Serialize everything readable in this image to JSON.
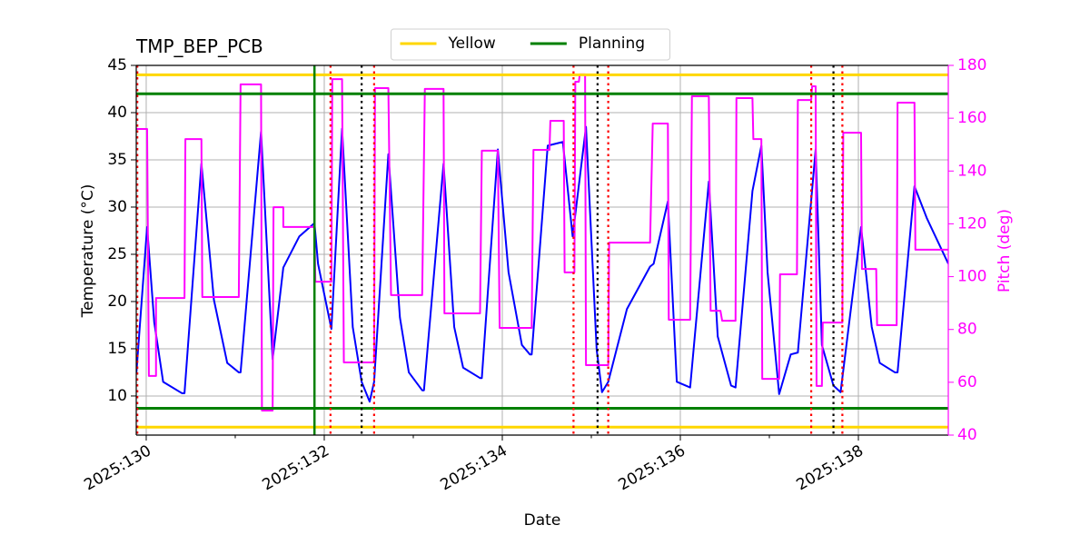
{
  "chart_data": {
    "type": "line",
    "title": "TMP_BEP_PCB",
    "xlabel": "Date",
    "ylabel": "Temperature (°C)",
    "y2label": "Pitch (deg)",
    "xlim": [
      129.888,
      139.01
    ],
    "ylim": [
      5.86,
      45
    ],
    "y2lim": [
      40,
      180
    ],
    "xticks": [
      {
        "value": 130,
        "label": "2025:130"
      },
      {
        "value": 132,
        "label": "2025:132"
      },
      {
        "value": 134,
        "label": "2025:134"
      },
      {
        "value": 136,
        "label": "2025:136"
      },
      {
        "value": 138,
        "label": "2025:138"
      }
    ],
    "xminorticks": [
      131,
      133,
      135,
      137
    ],
    "yticks": [
      10,
      15,
      20,
      25,
      30,
      35,
      40,
      45
    ],
    "y2ticks": [
      40,
      60,
      80,
      100,
      120,
      140,
      160,
      180
    ],
    "grid": true,
    "legend": "upper center",
    "y2color": "#ff00ff",
    "series": [
      {
        "color": "#0000ff",
        "x": [
          129.89,
          130.01,
          130.09,
          130.19,
          130.4,
          130.43,
          130.62,
          130.76,
          130.91,
          131.04,
          131.06,
          131.29,
          131.42,
          131.54,
          131.72,
          131.89,
          131.93,
          132.08,
          132.2,
          132.32,
          132.42,
          132.51,
          132.56,
          132.72,
          132.85,
          132.95,
          133.1,
          133.12,
          133.34,
          133.46,
          133.56,
          133.75,
          133.77,
          133.95,
          134.07,
          134.22,
          134.31,
          134.33,
          134.51,
          134.68,
          134.79,
          134.94,
          135.06,
          135.12,
          135.19,
          135.4,
          135.66,
          135.7,
          135.86,
          135.96,
          136.11,
          136.32,
          136.42,
          136.57,
          136.62,
          136.81,
          136.91,
          136.98,
          137.11,
          137.24,
          137.32,
          137.52,
          137.59,
          137.72,
          137.8,
          138.03,
          138.15,
          138.24,
          138.41,
          138.44,
          138.63,
          138.77,
          139.01
        ],
        "values": [
          12.5,
          27.9,
          17.8,
          11.5,
          10.3,
          10.3,
          34.6,
          20.2,
          13.5,
          12.5,
          12.5,
          38.0,
          13.9,
          23.6,
          26.9,
          28.3,
          24.0,
          17.1,
          38.3,
          17.3,
          11.5,
          9.4,
          11.5,
          35.6,
          18.3,
          12.5,
          10.6,
          10.6,
          34.6,
          17.3,
          13.0,
          11.9,
          11.9,
          36.1,
          23.1,
          15.4,
          14.4,
          14.4,
          36.5,
          36.9,
          26.9,
          38.5,
          14.9,
          10.4,
          11.5,
          19.2,
          23.7,
          24.0,
          30.6,
          11.5,
          10.9,
          32.7,
          16.3,
          11.1,
          10.9,
          31.7,
          36.5,
          23.1,
          10.2,
          14.4,
          14.6,
          36.1,
          15.4,
          11.1,
          10.4,
          27.9,
          17.3,
          13.5,
          12.5,
          12.5,
          32.2,
          28.8,
          24.0
        ]
      },
      {
        "color": "#ff00ff",
        "axis": "y2",
        "x": [
          129.89,
          130.01,
          130.03,
          130.11,
          130.11,
          130.43,
          130.44,
          130.62,
          130.63,
          131.04,
          131.06,
          131.29,
          131.3,
          131.42,
          131.43,
          131.54,
          131.54,
          131.89,
          131.9,
          132.08,
          132.09,
          132.2,
          132.22,
          132.56,
          132.57,
          132.72,
          132.75,
          133.1,
          133.13,
          133.34,
          133.35,
          133.75,
          133.77,
          133.95,
          133.97,
          134.33,
          134.35,
          134.53,
          134.54,
          134.69,
          134.7,
          134.81,
          134.82,
          134.86,
          134.87,
          134.93,
          134.94,
          135.19,
          135.2,
          135.66,
          135.69,
          135.86,
          135.87,
          136.11,
          136.13,
          136.32,
          136.34,
          136.45,
          136.47,
          136.62,
          136.63,
          136.81,
          136.82,
          136.91,
          136.92,
          137.11,
          137.12,
          137.31,
          137.32,
          137.47,
          137.48,
          137.52,
          137.53,
          137.59,
          137.6,
          137.82,
          137.83,
          138.03,
          138.04,
          138.2,
          138.21,
          138.43,
          138.44,
          138.63,
          138.64,
          139.01
        ],
        "values": [
          155.9,
          155.9,
          62.4,
          62.4,
          91.9,
          91.9,
          152.1,
          152.1,
          92.3,
          92.3,
          172.8,
          172.8,
          49.3,
          49.3,
          126.3,
          126.3,
          118.8,
          118.8,
          98.1,
          98.1,
          174.8,
          174.8,
          67.5,
          67.5,
          171.4,
          171.4,
          93.0,
          93.0,
          171.1,
          171.1,
          86.1,
          86.1,
          147.7,
          147.7,
          80.6,
          80.6,
          148.0,
          148.0,
          159.0,
          159.0,
          101.6,
          101.6,
          173.8,
          173.8,
          176.6,
          176.6,
          66.5,
          66.5,
          112.9,
          112.9,
          158.0,
          158.0,
          83.7,
          83.7,
          168.3,
          168.3,
          87.1,
          87.1,
          83.3,
          83.3,
          167.6,
          167.6,
          152.1,
          152.1,
          61.3,
          61.3,
          100.9,
          100.9,
          166.9,
          166.9,
          172.1,
          172.1,
          58.6,
          58.6,
          82.6,
          82.6,
          154.5,
          154.5,
          102.9,
          102.9,
          81.6,
          81.6,
          165.9,
          165.9,
          110.2,
          110.2
        ]
      }
    ],
    "hlines": [
      {
        "name": "Yellow",
        "color": "#ffd700",
        "values": [
          44,
          6.7
        ]
      },
      {
        "name": "Planning",
        "color": "#008000",
        "values": [
          42,
          8.7
        ]
      }
    ],
    "vlines": [
      {
        "color": "#008000",
        "style": "solid",
        "x": [
          131.89
        ]
      },
      {
        "color": "#000000",
        "style": "dotted",
        "x": [
          132.42,
          135.07,
          137.72
        ]
      },
      {
        "color": "#ff0000",
        "style": "dotted",
        "x": [
          129.9,
          132.07,
          132.56,
          134.8,
          135.19,
          137.47,
          137.82
        ]
      }
    ]
  }
}
